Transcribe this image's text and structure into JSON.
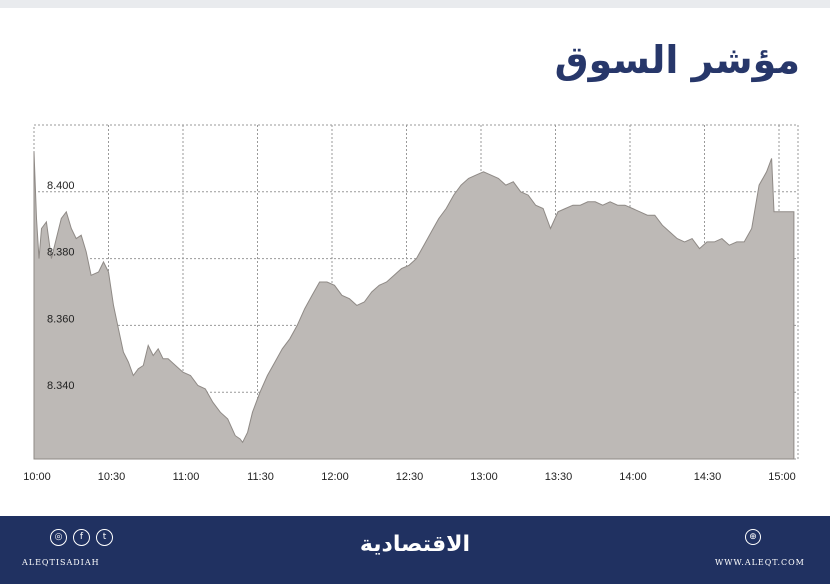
{
  "title": "مؤشر السوق",
  "footer": {
    "brand": "الاقتصادية",
    "handle": "ALEQTISADIAH",
    "website": "WWW.ALEQT.COM",
    "social_icons": [
      "instagram-icon",
      "facebook-icon",
      "twitter-icon"
    ],
    "web_icon": "globe-icon"
  },
  "colors": {
    "area_fill": "#bdb9b6",
    "line": "#8f8a86",
    "footer_bg": "#203161",
    "title": "#27376a"
  },
  "chart_data": {
    "type": "area",
    "x_labels": [
      "10:00",
      "10:30",
      "11:00",
      "11:30",
      "12:00",
      "12:30",
      "13:00",
      "13:30",
      "14:00",
      "14:30",
      "15:00"
    ],
    "y_ticks": [
      "8.340",
      "8.360",
      "8.380",
      "8.400"
    ],
    "ylim": [
      8.32,
      8.42
    ],
    "grid": true,
    "series": [
      {
        "points": [
          [
            "10:00",
            8.412
          ],
          [
            "10:01",
            8.392
          ],
          [
            "10:02",
            8.38
          ],
          [
            "10:03",
            8.389
          ],
          [
            "10:05",
            8.391
          ],
          [
            "10:07",
            8.38
          ],
          [
            "10:09",
            8.386
          ],
          [
            "10:11",
            8.392
          ],
          [
            "10:13",
            8.394
          ],
          [
            "10:15",
            8.389
          ],
          [
            "10:17",
            8.386
          ],
          [
            "10:19",
            8.387
          ],
          [
            "10:21",
            8.382
          ],
          [
            "10:23",
            8.375
          ],
          [
            "10:26",
            8.376
          ],
          [
            "10:28",
            8.379
          ],
          [
            "10:30",
            8.376
          ],
          [
            "10:32",
            8.366
          ],
          [
            "10:34",
            8.359
          ],
          [
            "10:36",
            8.352
          ],
          [
            "10:38",
            8.349
          ],
          [
            "10:40",
            8.345
          ],
          [
            "10:42",
            8.347
          ],
          [
            "10:44",
            8.348
          ],
          [
            "10:46",
            8.354
          ],
          [
            "10:48",
            8.351
          ],
          [
            "10:50",
            8.353
          ],
          [
            "10:52",
            8.35
          ],
          [
            "10:54",
            8.35
          ],
          [
            "10:57",
            8.348
          ],
          [
            "11:00",
            8.346
          ],
          [
            "11:03",
            8.345
          ],
          [
            "11:06",
            8.342
          ],
          [
            "11:09",
            8.341
          ],
          [
            "11:12",
            8.337
          ],
          [
            "11:15",
            8.334
          ],
          [
            "11:18",
            8.332
          ],
          [
            "11:21",
            8.327
          ],
          [
            "11:23",
            8.326
          ],
          [
            "11:24",
            8.325
          ],
          [
            "11:26",
            8.328
          ],
          [
            "11:28",
            8.334
          ],
          [
            "11:31",
            8.34
          ],
          [
            "11:34",
            8.345
          ],
          [
            "11:37",
            8.349
          ],
          [
            "11:40",
            8.353
          ],
          [
            "11:43",
            8.356
          ],
          [
            "11:46",
            8.36
          ],
          [
            "11:49",
            8.365
          ],
          [
            "11:52",
            8.369
          ],
          [
            "11:55",
            8.373
          ],
          [
            "11:58",
            8.373
          ],
          [
            "12:01",
            8.372
          ],
          [
            "12:04",
            8.369
          ],
          [
            "12:07",
            8.368
          ],
          [
            "12:10",
            8.366
          ],
          [
            "12:13",
            8.367
          ],
          [
            "12:16",
            8.37
          ],
          [
            "12:19",
            8.372
          ],
          [
            "12:22",
            8.373
          ],
          [
            "12:25",
            8.375
          ],
          [
            "12:28",
            8.377
          ],
          [
            "12:31",
            8.378
          ],
          [
            "12:34",
            8.38
          ],
          [
            "12:37",
            8.384
          ],
          [
            "12:40",
            8.388
          ],
          [
            "12:43",
            8.392
          ],
          [
            "12:46",
            8.395
          ],
          [
            "12:49",
            8.399
          ],
          [
            "12:52",
            8.402
          ],
          [
            "12:55",
            8.404
          ],
          [
            "12:58",
            8.405
          ],
          [
            "13:01",
            8.406
          ],
          [
            "13:04",
            8.405
          ],
          [
            "13:07",
            8.404
          ],
          [
            "13:10",
            8.402
          ],
          [
            "13:13",
            8.403
          ],
          [
            "13:16",
            8.4
          ],
          [
            "13:19",
            8.399
          ],
          [
            "13:22",
            8.396
          ],
          [
            "13:25",
            8.395
          ],
          [
            "13:28",
            8.389
          ],
          [
            "13:31",
            8.394
          ],
          [
            "13:34",
            8.395
          ],
          [
            "13:37",
            8.396
          ],
          [
            "13:40",
            8.396
          ],
          [
            "13:43",
            8.397
          ],
          [
            "13:46",
            8.397
          ],
          [
            "13:49",
            8.396
          ],
          [
            "13:52",
            8.397
          ],
          [
            "13:55",
            8.396
          ],
          [
            "13:58",
            8.396
          ],
          [
            "14:01",
            8.395
          ],
          [
            "14:04",
            8.394
          ],
          [
            "14:07",
            8.393
          ],
          [
            "14:10",
            8.393
          ],
          [
            "14:13",
            8.39
          ],
          [
            "14:16",
            8.388
          ],
          [
            "14:19",
            8.386
          ],
          [
            "14:22",
            8.385
          ],
          [
            "14:25",
            8.386
          ],
          [
            "14:28",
            8.383
          ],
          [
            "14:31",
            8.385
          ],
          [
            "14:34",
            8.385
          ],
          [
            "14:37",
            8.386
          ],
          [
            "14:40",
            8.384
          ],
          [
            "14:43",
            8.385
          ],
          [
            "14:46",
            8.385
          ],
          [
            "14:49",
            8.389
          ],
          [
            "14:52",
            8.402
          ],
          [
            "14:55",
            8.406
          ],
          [
            "14:57",
            8.41
          ],
          [
            "14:58",
            8.394
          ],
          [
            "15:01",
            8.394
          ],
          [
            "15:06",
            8.394
          ]
        ]
      }
    ]
  }
}
